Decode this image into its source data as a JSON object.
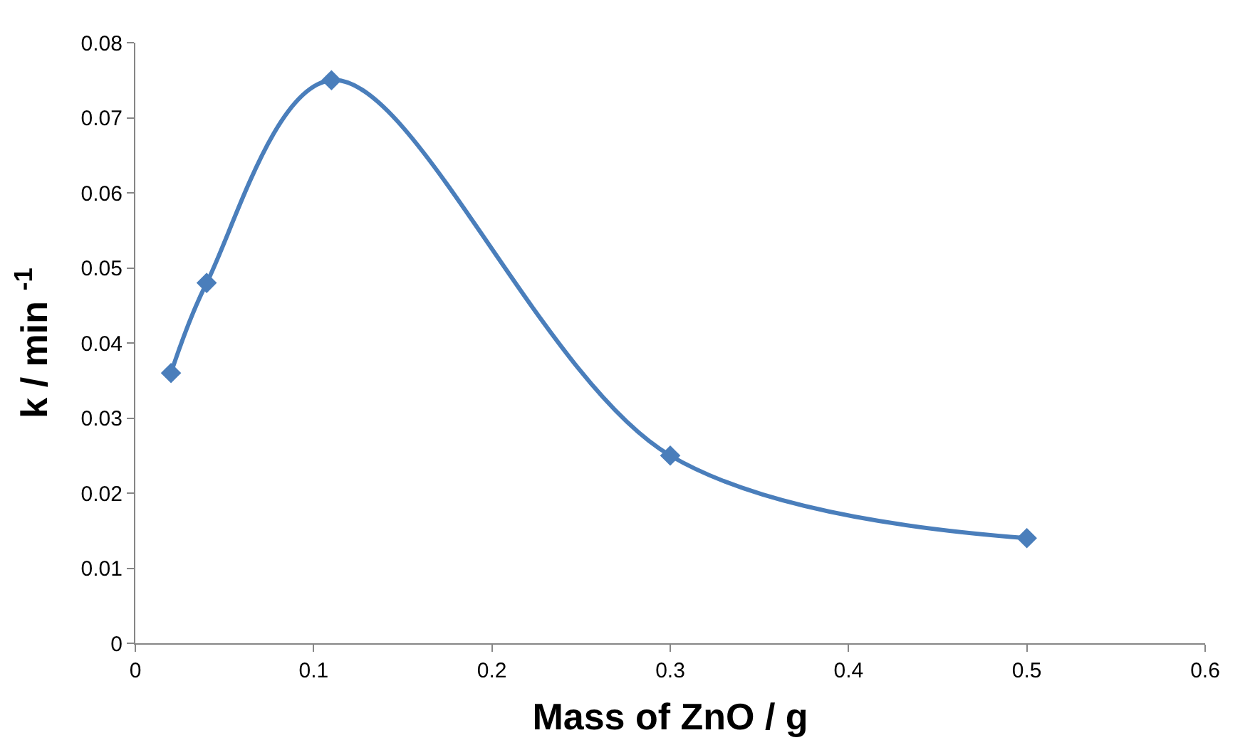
{
  "chart_data": {
    "type": "line",
    "xlabel": "Mass of ZnO / g",
    "ylabel": "k / min $^{-1}$",
    "x": [
      0.02,
      0.04,
      0.11,
      0.3,
      0.5
    ],
    "series": [
      {
        "color": "#4a7ebb",
        "values": [
          0.036,
          0.048,
          0.075,
          0.025,
          0.014
        ]
      }
    ],
    "xlim": [
      0,
      0.6
    ],
    "xticks": [
      0,
      0.1,
      0.2,
      0.3,
      0.4,
      0.5,
      0.6
    ],
    "ylim": [
      0,
      0.08
    ],
    "yticks": [
      0,
      0.01,
      0.02,
      0.03,
      0.04,
      0.05,
      0.06,
      0.07,
      0.08
    ],
    "legend": false,
    "marker": "diamond",
    "line_style": "solid"
  }
}
